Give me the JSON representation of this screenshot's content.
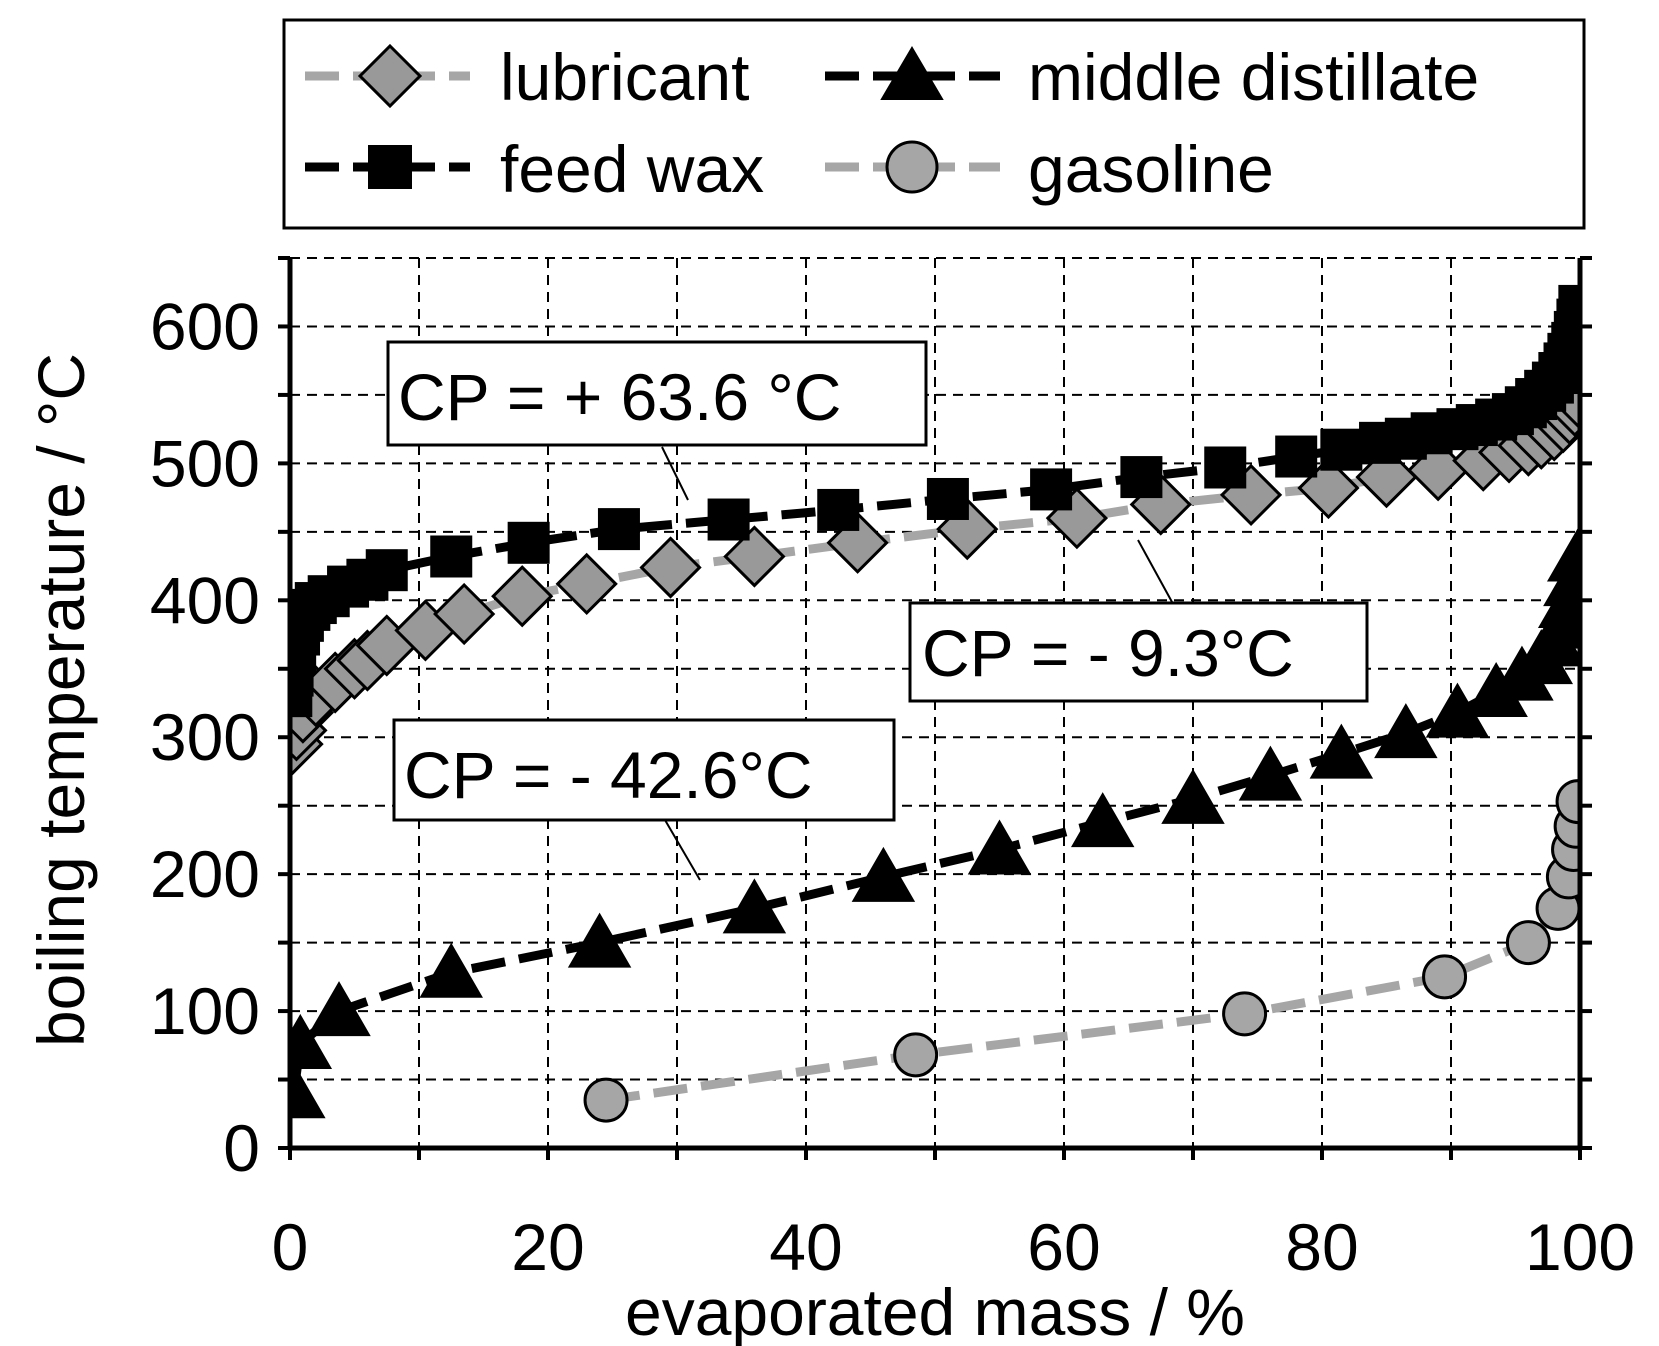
{
  "chart_data": {
    "type": "line",
    "title": "",
    "xlabel": "evaporated mass / %",
    "ylabel": "boiling temperature / °C",
    "xlim": [
      0,
      100
    ],
    "ylim": [
      0,
      650
    ],
    "xticks": [
      "0",
      "20",
      "40",
      "60",
      "80",
      "100"
    ],
    "xtick_values": [
      0,
      20,
      40,
      60,
      80,
      100
    ],
    "yticks": [
      "0",
      "100",
      "200",
      "300",
      "400",
      "500",
      "600"
    ],
    "ytick_values": [
      0,
      100,
      200,
      300,
      400,
      500,
      600
    ],
    "grid": true,
    "legend_position": "top",
    "series": [
      {
        "name": "lubricant",
        "marker": "diamond",
        "color": "#999999",
        "line_color": "#a6a6a6",
        "x": [
          0.2,
          0.5,
          1,
          2,
          3.5,
          5,
          6,
          7.5,
          10.5,
          13.5,
          18,
          23,
          29.5,
          36,
          44,
          52.5,
          61,
          67.5,
          74.5,
          80.5,
          85,
          89,
          92.5,
          94.5,
          96,
          97,
          98,
          98.7,
          99.2,
          99.6,
          99.9
        ],
        "y": [
          295,
          305,
          318,
          330,
          340,
          350,
          356,
          367,
          378,
          390,
          403,
          412,
          424,
          432,
          442,
          452,
          460,
          470,
          477,
          482,
          490,
          495,
          502,
          508,
          513,
          518,
          524,
          530,
          536,
          542,
          548
        ]
      },
      {
        "name": "middle distillate",
        "marker": "triangle",
        "color": "#000000",
        "line_color": "#000000",
        "x": [
          0.3,
          0.8,
          3.8,
          12.5,
          24,
          36,
          46,
          55,
          63,
          70,
          76,
          81.5,
          86.5,
          90.5,
          93.5,
          95.5,
          97,
          98,
          98.7,
          99.2,
          99.6,
          99.9
        ],
        "y": [
          40,
          76,
          100,
          128,
          150,
          175,
          198,
          218,
          238,
          255,
          272,
          288,
          303,
          318,
          333,
          345,
          357,
          370,
          383,
          398,
          414,
          432
        ]
      },
      {
        "name": "feed wax",
        "marker": "square",
        "color": "#000000",
        "line_color": "#000000",
        "x": [
          0.1,
          0.2,
          0.4,
          0.7,
          1,
          1.5,
          2,
          3,
          4.5,
          6,
          7.5,
          12.5,
          18.5,
          25.5,
          34,
          42.5,
          51,
          59,
          66,
          72.5,
          78,
          81.5,
          84.5,
          86.5,
          88.5,
          90.5,
          92,
          93.5,
          94.8,
          95.8,
          96.6,
          97.3,
          97.9,
          98.4,
          98.8,
          99.1,
          99.4,
          99.6,
          99.8,
          99.95
        ],
        "y": [
          330,
          345,
          362,
          375,
          385,
          393,
          398,
          403,
          410,
          415,
          422,
          432,
          442,
          452,
          459,
          466,
          474,
          481,
          490,
          497,
          505,
          510,
          515,
          518,
          522,
          525,
          528,
          532,
          536,
          541,
          547,
          553,
          559,
          566,
          573,
          580,
          588,
          596,
          605,
          615
        ]
      },
      {
        "name": "gasoline",
        "marker": "circle",
        "color": "#a6a6a6",
        "line_color": "#a6a6a6",
        "x": [
          24.5,
          48.5,
          74,
          89.5,
          96,
          98.3,
          99.1,
          99.5,
          99.7,
          99.85
        ],
        "y": [
          35,
          68,
          98,
          125,
          150,
          175,
          198,
          218,
          235,
          253
        ]
      }
    ],
    "annotations": [
      {
        "label": "CP = + 63.6 °C",
        "target_series": "feed wax"
      },
      {
        "label": "CP = - 9.3°C",
        "target_series": "lubricant"
      },
      {
        "label": "CP = - 42.6°C",
        "target_series": "middle distillate"
      }
    ]
  }
}
